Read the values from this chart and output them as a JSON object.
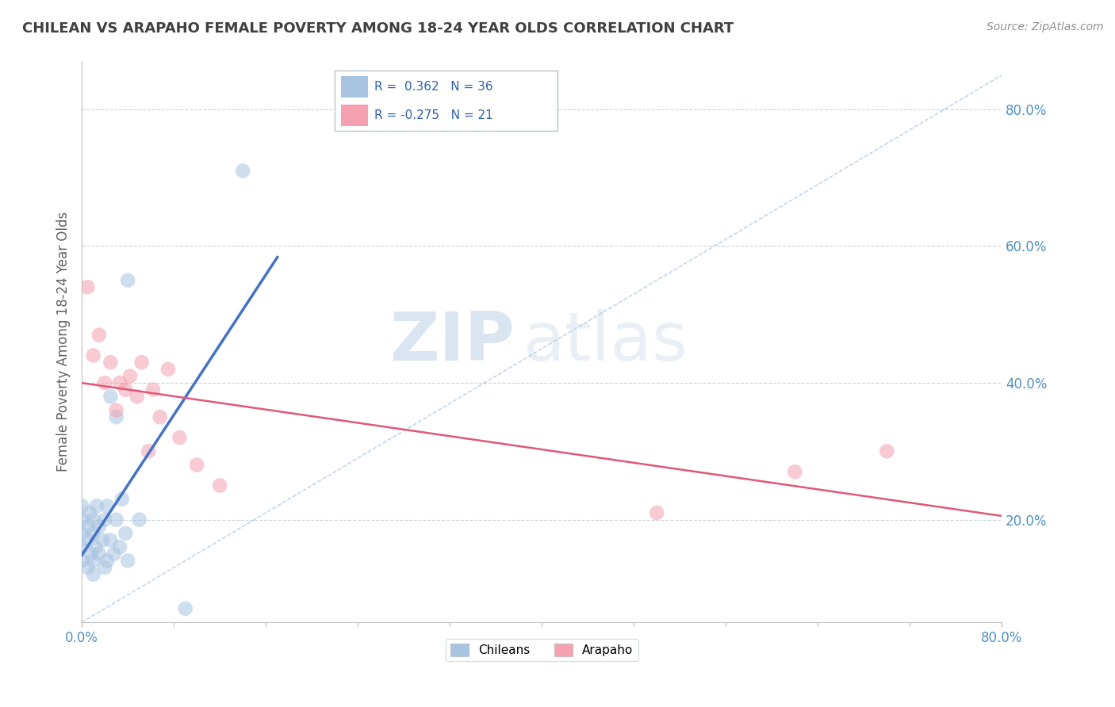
{
  "title": "CHILEAN VS ARAPAHO FEMALE POVERTY AMONG 18-24 YEAR OLDS CORRELATION CHART",
  "source": "Source: ZipAtlas.com",
  "ylabel": "Female Poverty Among 18-24 Year Olds",
  "xlim": [
    0.0,
    0.8
  ],
  "ylim": [
    0.05,
    0.87
  ],
  "xticks": [
    0.0,
    0.8
  ],
  "xticklabels": [
    "0.0%",
    "80.0%"
  ],
  "yticks": [
    0.2,
    0.4,
    0.6,
    0.8
  ],
  "yticklabels": [
    "20.0%",
    "40.0%",
    "60.0%",
    "80.0%"
  ],
  "chilean_color": "#a8c4e0",
  "arapaho_color": "#f4a0b0",
  "chilean_line_color": "#4472c4",
  "arapaho_line_color": "#e05878",
  "diag_line_color": "#a8c0e0",
  "watermark_zip": "ZIP",
  "watermark_atlas": "atlas",
  "bg_color": "#ffffff",
  "grid_color": "#c8d4e0",
  "title_color": "#404040",
  "axis_label_color": "#606060",
  "tick_label_color": "#5090c0",
  "marker_size": 180,
  "alpha": 0.55,
  "chilean_x": [
    0.0,
    0.0,
    0.0,
    0.0,
    0.0,
    0.005,
    0.005,
    0.005,
    0.007,
    0.008,
    0.01,
    0.01,
    0.01,
    0.01,
    0.012,
    0.013,
    0.015,
    0.015,
    0.018,
    0.02,
    0.02,
    0.022,
    0.022,
    0.025,
    0.025,
    0.028,
    0.03,
    0.03,
    0.033,
    0.035,
    0.038,
    0.04,
    0.04,
    0.05,
    0.09,
    0.14
  ],
  "chilean_y": [
    0.14,
    0.16,
    0.18,
    0.2,
    0.22,
    0.13,
    0.17,
    0.19,
    0.21,
    0.15,
    0.12,
    0.14,
    0.18,
    0.2,
    0.16,
    0.22,
    0.15,
    0.19,
    0.17,
    0.13,
    0.2,
    0.14,
    0.22,
    0.17,
    0.38,
    0.15,
    0.2,
    0.35,
    0.16,
    0.23,
    0.18,
    0.14,
    0.55,
    0.2,
    0.07,
    0.71
  ],
  "arapaho_x": [
    0.005,
    0.01,
    0.015,
    0.02,
    0.025,
    0.03,
    0.033,
    0.038,
    0.042,
    0.048,
    0.052,
    0.058,
    0.062,
    0.068,
    0.075,
    0.085,
    0.1,
    0.12,
    0.5,
    0.62,
    0.7
  ],
  "arapaho_y": [
    0.54,
    0.44,
    0.47,
    0.4,
    0.43,
    0.36,
    0.4,
    0.39,
    0.41,
    0.38,
    0.43,
    0.3,
    0.39,
    0.35,
    0.42,
    0.32,
    0.28,
    0.25,
    0.21,
    0.27,
    0.3
  ],
  "chilean_trend_x": [
    0.0,
    0.17
  ],
  "arapaho_trend_x": [
    0.0,
    0.8
  ]
}
